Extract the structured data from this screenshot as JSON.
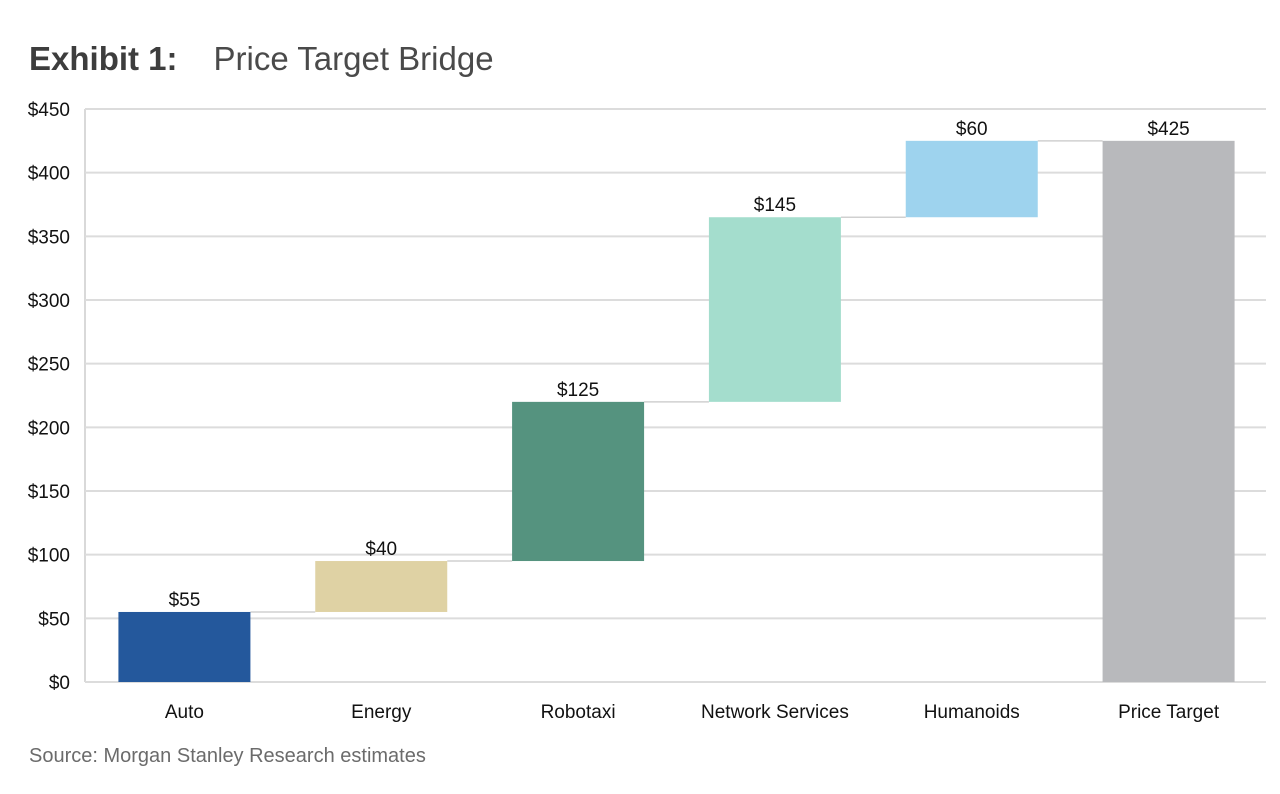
{
  "header": {
    "exhibit": "Exhibit 1:",
    "title": "Price Target Bridge"
  },
  "footer": {
    "source": "Source: Morgan Stanley Research estimates"
  },
  "chart_data": {
    "type": "bar",
    "subtype": "waterfall",
    "title": "Price Target Bridge",
    "xlabel": "",
    "ylabel": "",
    "ylim": [
      0,
      450
    ],
    "yticks": [
      0,
      50,
      100,
      150,
      200,
      250,
      300,
      350,
      400,
      450
    ],
    "ytick_labels": [
      "$0",
      "$50",
      "$100",
      "$150",
      "$200",
      "$250",
      "$300",
      "$350",
      "$400",
      "$450"
    ],
    "grid": true,
    "legend": "none",
    "categories": [
      "Auto",
      "Energy",
      "Robotaxi",
      "Network Services",
      "Humanoids",
      "Price Target"
    ],
    "values": [
      55,
      40,
      125,
      145,
      60,
      425
    ],
    "bases": [
      0,
      55,
      95,
      220,
      365,
      0
    ],
    "is_total": [
      false,
      false,
      false,
      false,
      false,
      true
    ],
    "data_labels": [
      "$55",
      "$40",
      "$125",
      "$145",
      "$60",
      "$425"
    ],
    "colors": [
      "#24589c",
      "#dfd2a4",
      "#55937f",
      "#a4ddcd",
      "#9ed3ee",
      "#b8b9bc"
    ]
  }
}
